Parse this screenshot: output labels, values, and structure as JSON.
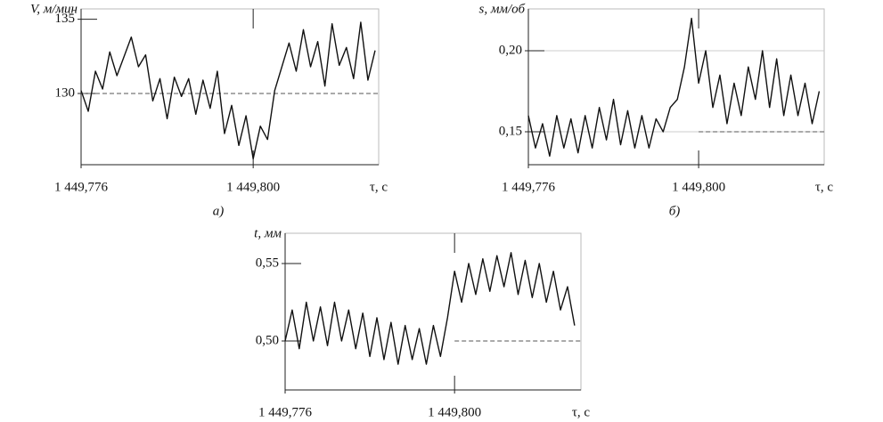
{
  "chart_data": [
    {
      "type": "line",
      "y_label": "V, м/мин",
      "x_label": "τ, с",
      "caption": "а)",
      "xlim": [
        1449.776,
        1449.8175
      ],
      "ylim": [
        125.2,
        135.7
      ],
      "xticks": [
        {
          "value": 1449.776,
          "label": "1 449,776"
        },
        {
          "value": 1449.8,
          "label": "1 449,800"
        }
      ],
      "yticks": [
        130,
        135
      ],
      "grid": false,
      "color": "#111111",
      "reference_line": {
        "y": 130
      },
      "x": [
        1449.776,
        1449.777,
        1449.778,
        1449.779,
        1449.78,
        1449.781,
        1449.782,
        1449.783,
        1449.784,
        1449.785,
        1449.786,
        1449.787,
        1449.788,
        1449.789,
        1449.79,
        1449.791,
        1449.792,
        1449.793,
        1449.794,
        1449.795,
        1449.796,
        1449.797,
        1449.798,
        1449.799,
        1449.8,
        1449.801,
        1449.802,
        1449.803,
        1449.804,
        1449.805,
        1449.806,
        1449.807,
        1449.808,
        1449.809,
        1449.81,
        1449.811,
        1449.812,
        1449.813,
        1449.814,
        1449.815,
        1449.816,
        1449.817
      ],
      "values": [
        130.2,
        128.8,
        131.5,
        130.3,
        132.8,
        131.2,
        132.5,
        133.8,
        131.8,
        132.6,
        129.5,
        131.0,
        128.3,
        131.1,
        129.8,
        131.0,
        128.6,
        130.9,
        129.0,
        131.5,
        127.3,
        129.2,
        126.5,
        128.5,
        125.6,
        127.8,
        126.9,
        130.2,
        131.8,
        133.4,
        131.5,
        134.3,
        131.8,
        133.5,
        130.5,
        134.7,
        131.9,
        133.1,
        131.0,
        134.8,
        130.9,
        132.9
      ]
    },
    {
      "type": "line",
      "y_label": "s, мм/об",
      "x_label": "τ, с",
      "caption": "б)",
      "xlim": [
        1449.776,
        1449.8177
      ],
      "ylim": [
        0.1297,
        0.2258
      ],
      "xticks": [
        {
          "value": 1449.776,
          "label": "1 449,776"
        },
        {
          "value": 1449.8,
          "label": "1 449,800"
        }
      ],
      "yticks": [
        {
          "value": 0.15,
          "label": "0,15"
        },
        {
          "value": 0.2,
          "label": "0,20"
        }
      ],
      "grid": true,
      "color": "#111111",
      "reference_line": {
        "y": 0.15,
        "x_start": 1449.8
      },
      "x": [
        1449.776,
        1449.777,
        1449.778,
        1449.779,
        1449.78,
        1449.781,
        1449.782,
        1449.783,
        1449.784,
        1449.785,
        1449.786,
        1449.787,
        1449.788,
        1449.789,
        1449.79,
        1449.791,
        1449.792,
        1449.793,
        1449.794,
        1449.795,
        1449.796,
        1449.797,
        1449.798,
        1449.799,
        1449.8,
        1449.801,
        1449.802,
        1449.803,
        1449.804,
        1449.805,
        1449.806,
        1449.807,
        1449.808,
        1449.809,
        1449.81,
        1449.811,
        1449.812,
        1449.813,
        1449.814,
        1449.815,
        1449.816,
        1449.817
      ],
      "values": [
        0.16,
        0.14,
        0.155,
        0.135,
        0.16,
        0.14,
        0.158,
        0.137,
        0.16,
        0.14,
        0.165,
        0.145,
        0.17,
        0.142,
        0.163,
        0.14,
        0.16,
        0.14,
        0.158,
        0.15,
        0.165,
        0.17,
        0.19,
        0.22,
        0.18,
        0.2,
        0.165,
        0.185,
        0.155,
        0.18,
        0.16,
        0.19,
        0.17,
        0.2,
        0.165,
        0.195,
        0.16,
        0.185,
        0.16,
        0.18,
        0.155,
        0.175
      ]
    },
    {
      "type": "line",
      "y_label": "t, мм",
      "x_label": "τ, с",
      "xlim": [
        1449.776,
        1449.8179
      ],
      "ylim": [
        0.4684,
        0.5695
      ],
      "xticks": [
        {
          "value": 1449.776,
          "label": "1 449,776"
        },
        {
          "value": 1449.8,
          "label": "1 449,800"
        }
      ],
      "yticks": [
        {
          "value": 0.5,
          "label": "0,50"
        },
        {
          "value": 0.55,
          "label": "0,55"
        }
      ],
      "grid": false,
      "color": "#111111",
      "reference_line": {
        "y": 0.5,
        "x_start": 1449.8
      },
      "x": [
        1449.776,
        1449.777,
        1449.778,
        1449.779,
        1449.78,
        1449.781,
        1449.782,
        1449.783,
        1449.784,
        1449.785,
        1449.786,
        1449.787,
        1449.788,
        1449.789,
        1449.79,
        1449.791,
        1449.792,
        1449.793,
        1449.794,
        1449.795,
        1449.796,
        1449.797,
        1449.798,
        1449.799,
        1449.8,
        1449.801,
        1449.802,
        1449.803,
        1449.804,
        1449.805,
        1449.806,
        1449.807,
        1449.808,
        1449.809,
        1449.81,
        1449.811,
        1449.812,
        1449.813,
        1449.814,
        1449.815,
        1449.816,
        1449.817
      ],
      "values": [
        0.5,
        0.52,
        0.495,
        0.525,
        0.5,
        0.522,
        0.497,
        0.525,
        0.5,
        0.52,
        0.495,
        0.518,
        0.49,
        0.515,
        0.488,
        0.512,
        0.485,
        0.51,
        0.488,
        0.508,
        0.485,
        0.51,
        0.49,
        0.515,
        0.545,
        0.525,
        0.55,
        0.53,
        0.553,
        0.532,
        0.555,
        0.535,
        0.557,
        0.53,
        0.552,
        0.528,
        0.55,
        0.525,
        0.545,
        0.52,
        0.535,
        0.51
      ]
    }
  ]
}
